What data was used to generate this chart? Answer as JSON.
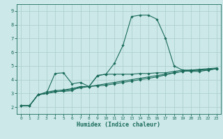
{
  "xlabel": "Humidex (Indice chaleur)",
  "bg_color": "#cce8e8",
  "grid_color": "#aacccc",
  "line_color": "#1a6b5a",
  "xlim": [
    -0.5,
    23.5
  ],
  "ylim": [
    1.5,
    9.5
  ],
  "xticks": [
    0,
    1,
    2,
    3,
    4,
    5,
    6,
    7,
    8,
    9,
    10,
    11,
    12,
    13,
    14,
    15,
    16,
    17,
    18,
    19,
    20,
    21,
    22,
    23
  ],
  "yticks": [
    2,
    3,
    4,
    5,
    6,
    7,
    8,
    9
  ],
  "series": [
    {
      "x": [
        0,
        1,
        2,
        3,
        4,
        5,
        6,
        7,
        8,
        9,
        10,
        11,
        12,
        13,
        14,
        15,
        16,
        17,
        18,
        19,
        20,
        21,
        22,
        23
      ],
      "y": [
        2.1,
        2.1,
        2.9,
        3.0,
        3.15,
        3.15,
        3.2,
        3.5,
        3.5,
        4.3,
        4.4,
        5.2,
        6.5,
        8.6,
        8.7,
        8.7,
        8.4,
        7.0,
        5.0,
        4.7,
        4.6,
        4.6,
        4.7,
        4.8
      ]
    },
    {
      "x": [
        0,
        1,
        2,
        3,
        4,
        5,
        6,
        7,
        8,
        9,
        10,
        11,
        12,
        13,
        14,
        15,
        16,
        17,
        18,
        19,
        20,
        21,
        22,
        23
      ],
      "y": [
        2.1,
        2.1,
        2.9,
        3.0,
        4.45,
        4.5,
        3.7,
        3.8,
        3.5,
        4.3,
        4.4,
        4.4,
        4.4,
        4.4,
        4.45,
        4.45,
        4.5,
        4.5,
        4.6,
        4.7,
        4.7,
        4.7,
        4.7,
        4.8
      ]
    },
    {
      "x": [
        0,
        1,
        2,
        3,
        4,
        5,
        6,
        7,
        8,
        9,
        10,
        11,
        12,
        13,
        14,
        15,
        16,
        17,
        18,
        19,
        20,
        21,
        22,
        23
      ],
      "y": [
        2.1,
        2.1,
        2.9,
        3.1,
        3.2,
        3.25,
        3.35,
        3.5,
        3.5,
        3.55,
        3.6,
        3.7,
        3.8,
        3.9,
        4.0,
        4.1,
        4.2,
        4.35,
        4.5,
        4.6,
        4.7,
        4.75,
        4.8,
        4.85
      ]
    },
    {
      "x": [
        0,
        1,
        2,
        3,
        4,
        5,
        6,
        7,
        8,
        9,
        10,
        11,
        12,
        13,
        14,
        15,
        16,
        17,
        18,
        19,
        20,
        21,
        22,
        23
      ],
      "y": [
        2.1,
        2.1,
        2.9,
        3.0,
        3.1,
        3.2,
        3.3,
        3.4,
        3.5,
        3.6,
        3.7,
        3.8,
        3.9,
        4.0,
        4.1,
        4.2,
        4.3,
        4.4,
        4.5,
        4.6,
        4.65,
        4.7,
        4.75,
        4.8
      ]
    }
  ]
}
